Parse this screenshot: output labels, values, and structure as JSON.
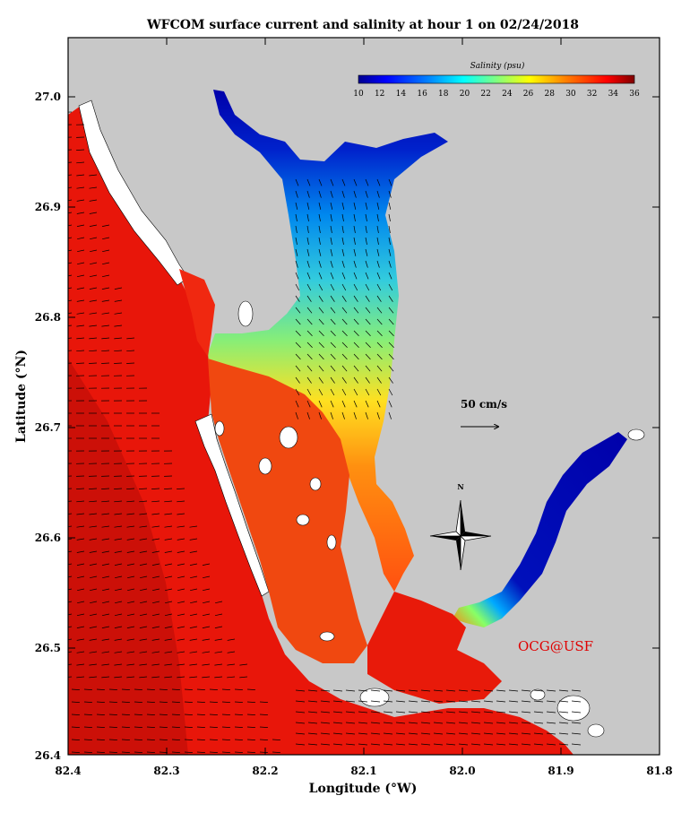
{
  "title": "WFCOM surface current and salinity at hour  1 on 02/24/2018",
  "axes": {
    "xlabel": "Longitude (°W)",
    "ylabel": "Latitude (°N)",
    "x_ticks": [
      "82.4",
      "82.3",
      "82.2",
      "82.1",
      "82.0",
      "81.9",
      "81.8"
    ],
    "y_ticks": [
      "27.0",
      "26.9",
      "26.8",
      "26.7",
      "26.6",
      "26.5",
      "26.4"
    ],
    "x_range_degW": [
      82.4,
      81.8
    ],
    "y_range_degN": [
      26.4,
      27.05
    ]
  },
  "colorbar": {
    "title": "Salinity (psu)",
    "ticks": [
      "10",
      "12",
      "14",
      "16",
      "18",
      "20",
      "22",
      "24",
      "26",
      "28",
      "30",
      "32",
      "34",
      "36"
    ],
    "range": [
      10,
      36
    ]
  },
  "scale_vector": {
    "label": "50 cm/s"
  },
  "compass": {
    "label": "N"
  },
  "credit": "OCG@USF",
  "colors": {
    "land": "#c8c8c8",
    "gulf_salinity": "#e8160a",
    "deep_gulf": "#cc1008",
    "credit": "#e00000"
  }
}
